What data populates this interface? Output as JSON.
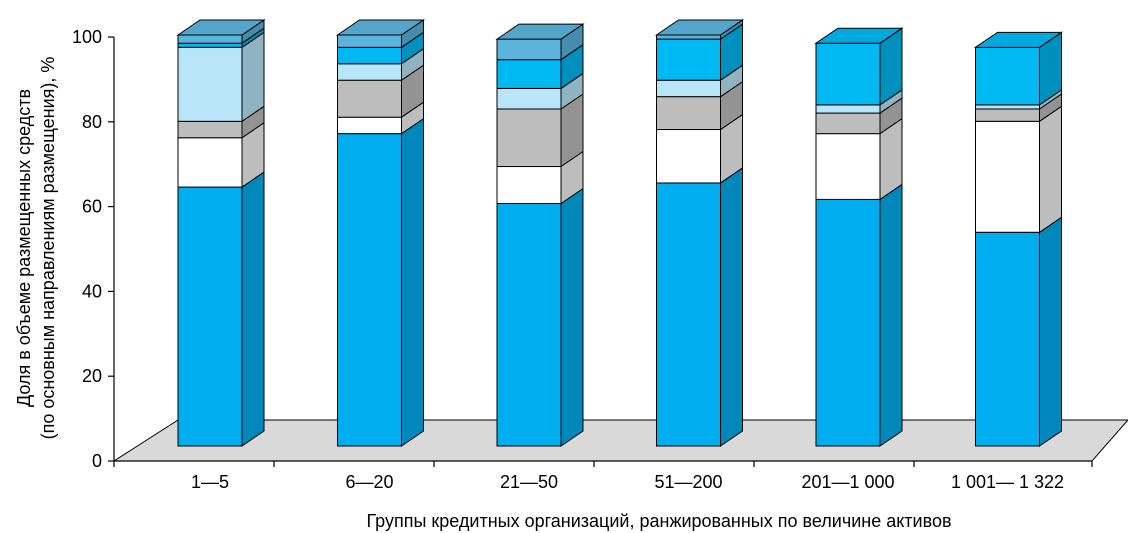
{
  "chart_data": {
    "type": "bar",
    "stacked": true,
    "three_d": true,
    "xlabel": "Группы кредитных организаций, ранжированных по величине активов",
    "ylabel_line1": "Доля в объеме размещенных средств",
    "ylabel_line2": "(по основным направлениям размещения), %",
    "ylim": [
      0,
      100
    ],
    "yticks": [
      "0",
      "20",
      "40",
      "60",
      "80",
      "100"
    ],
    "grid": false,
    "legend": "none",
    "categories": [
      "1—5",
      "6—20",
      "21—50",
      "51—200",
      "201—1 000",
      "1 001— 1 322"
    ],
    "series": [
      {
        "color": "#00aeef",
        "values": [
          63,
          76,
          59,
          64,
          60,
          52
        ]
      },
      {
        "color": "#ffffff",
        "values": [
          12,
          4,
          9,
          13,
          16,
          27
        ]
      },
      {
        "color": "#bdbdbd",
        "values": [
          4,
          9,
          14,
          8,
          5,
          3
        ]
      },
      {
        "color": "#b9e5f8",
        "values": [
          18,
          4,
          5,
          4,
          2,
          1
        ]
      },
      {
        "color": "#00b9f2",
        "values": [
          1,
          4,
          7,
          10,
          15,
          14
        ]
      },
      {
        "color": "#5ab4dc",
        "values": [
          2,
          3,
          5,
          1,
          0,
          0
        ]
      }
    ]
  }
}
